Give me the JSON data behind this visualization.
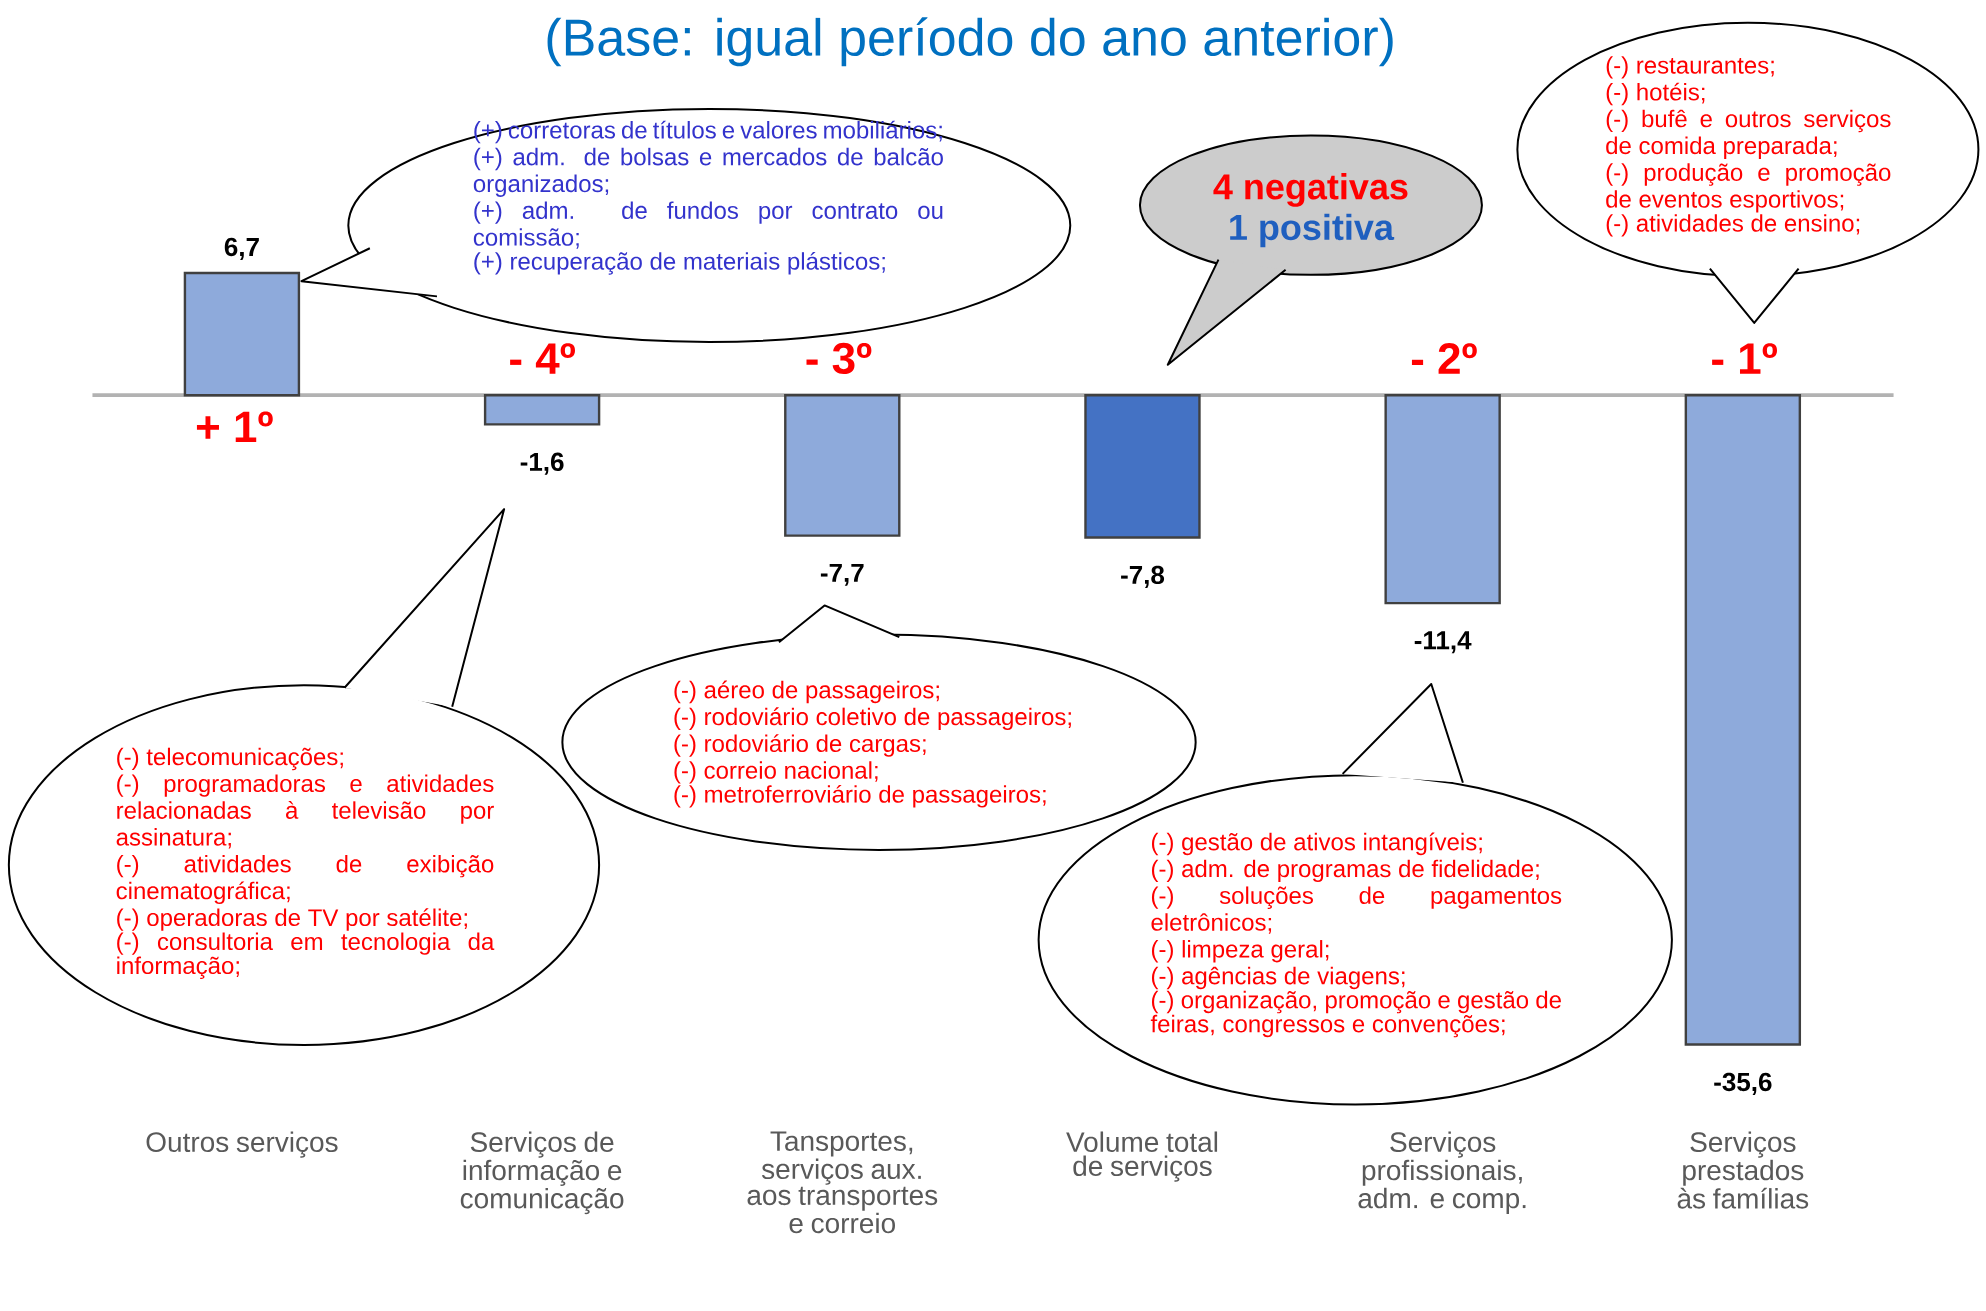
{
  "chart_data": {
    "type": "bar",
    "title": "(Base: igual período do ano anterior)",
    "categories": [
      "Outros serviços",
      "Serviços de informação e comunicação",
      "Tansportes, serviços aux. aos transportes e correio",
      "Volume total de serviços",
      "Serviços profissionais, adm. e comp.",
      "Serviços prestados às famílias"
    ],
    "values": [
      6.7,
      -1.6,
      -7.7,
      -7.8,
      -11.4,
      -35.6
    ],
    "colors": [
      "#8eaadb",
      "#8eaadb",
      "#8eaadb",
      "#4472c4",
      "#8eaadb",
      "#8eaadb"
    ],
    "value_labels": [
      "6,7",
      "-1,6",
      "-7,7",
      "-7,8",
      "-11,4",
      "-35,6"
    ],
    "annotations": [
      "+ 1º",
      "- 4º",
      "- 3º",
      "- 2º",
      "- 1º",
      "4 negativas",
      "1 positiva",
      "(+) corretoras de títulos e valores mobiliários;",
      "(+) adm. de bolsas e mercados de balcão organizados;",
      "(+) adm. de fundos por contrato ou comissão;",
      "(+) recuperação de materiais plásticos;",
      "(-) restaurantes;",
      "(-) hotéis;",
      "(-) bufê e outros serviços de comida preparada;",
      "(-) produção e promoção de eventos esportivos;",
      "(-) atividades de ensino;",
      "(-) telecomunicações;",
      "(-) programadoras e atividades relacionadas à televisão por assinatura;",
      "(-) atividades de exibição cinematográfica;",
      "(-) operadoras de TV por satélite;",
      "(-) consultoria em tecnologia da informação;",
      "(-) aéreo de passageiros;",
      "(-) rodoviário coletivo de passageiros;",
      "(-) rodoviário de cargas;",
      "(-) correio nacional;",
      "(-) metroferroviário de passageiros;",
      "(-) gestão de ativos intangíveis;",
      "(-) adm. de programas de fidelidade;",
      "(-) soluções de pagamentos eletrônicos;",
      "(-) limpeza geral;",
      "(-) agências de viagens;",
      "(-) organização, promoção e gestão de feiras, congressos e convenções;"
    ]
  }
}
